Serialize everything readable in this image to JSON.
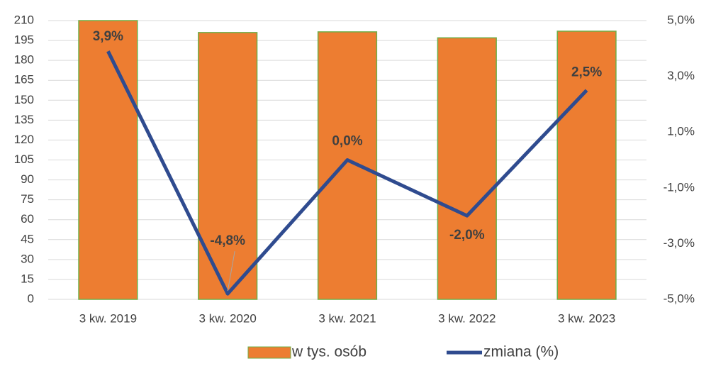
{
  "chart_data": {
    "type": "bar",
    "categories": [
      "3 kw. 2019",
      "3 kw. 2020",
      "3 kw. 2021",
      "3 kw. 2022",
      "3 kw. 2023"
    ],
    "series": [
      {
        "name": "w tys. osób",
        "type": "bar",
        "color": "#ed7d31",
        "edge": "#70ad47",
        "values": [
          210,
          201,
          201.5,
          197,
          202
        ]
      },
      {
        "name": "zmiana (%)",
        "type": "line",
        "color": "#2f4b8f",
        "axis": "y2",
        "values": [
          3.9,
          -4.8,
          0.0,
          -2.0,
          2.5
        ],
        "value_labels": [
          "3,9%",
          "-4,8%",
          "0,0%",
          "-2,0%",
          "2,5%"
        ]
      }
    ],
    "ylim": [
      0,
      210
    ],
    "yticks": [
      0,
      15,
      30,
      45,
      60,
      75,
      90,
      105,
      120,
      135,
      150,
      165,
      180,
      195,
      210
    ],
    "y2lim": [
      -5,
      5
    ],
    "y2ticks": [
      {
        "value": -5,
        "label": "-5,0%"
      },
      {
        "value": -3,
        "label": "-3,0%"
      },
      {
        "value": -1,
        "label": "-1,0%"
      },
      {
        "value": 1,
        "label": "1,0%"
      },
      {
        "value": 3,
        "label": "3,0%"
      },
      {
        "value": 5,
        "label": "5,0%"
      }
    ],
    "grid": true,
    "legend": "bottom"
  }
}
